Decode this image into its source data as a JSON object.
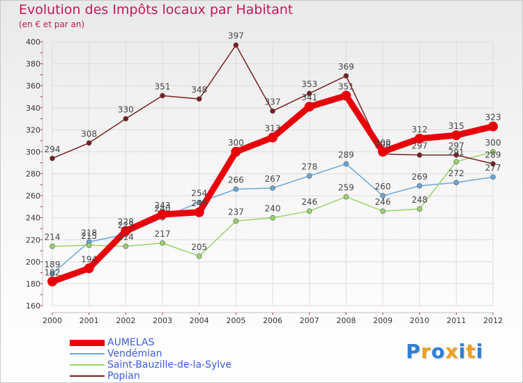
{
  "chart_data": {
    "type": "line",
    "title": "Evolution des Impôts locaux par Habitant",
    "subtitle": "(en € et par an)",
    "xlabel": "",
    "ylabel": "",
    "categories": [
      "2000",
      "2001",
      "2002",
      "2003",
      "2004",
      "2005",
      "2006",
      "2007",
      "2008",
      "2009",
      "2010",
      "2011",
      "2012"
    ],
    "ylim": [
      160,
      400
    ],
    "yticks": [
      160,
      180,
      200,
      220,
      240,
      260,
      280,
      300,
      320,
      340,
      360,
      380,
      400
    ],
    "grid": true,
    "series": [
      {
        "name": "AUMELAS",
        "color": "#e8000a",
        "thick": true,
        "values": [
          182,
          194,
          228,
          243,
          245,
          300,
          313,
          341,
          351,
          300,
          312,
          315,
          323
        ]
      },
      {
        "name": "Vendémian",
        "color": "#6aa6d8",
        "thick": false,
        "values": [
          189,
          218,
          225,
          240,
          254,
          266,
          267,
          278,
          289,
          260,
          269,
          272,
          277
        ]
      },
      {
        "name": "Saint-Bauzille-de-la-Sylve",
        "color": "#98d46a",
        "thick": false,
        "values": [
          214,
          215,
          214,
          217,
          205,
          237,
          240,
          246,
          259,
          246,
          248,
          291,
          300
        ]
      },
      {
        "name": "Popian",
        "color": "#7a1f1f",
        "thick": false,
        "values": [
          294,
          308,
          330,
          351,
          348,
          397,
          337,
          353,
          369,
          298,
          297,
          297,
          289
        ]
      }
    ]
  },
  "logo": {
    "letters": [
      "P",
      "r",
      "o",
      "x",
      "i",
      "t",
      "i"
    ],
    "colors": [
      "#2e7ed6",
      "#f0a020",
      "#2e7ed6",
      "#f0a020",
      "#2e7ed6",
      "#f0a020",
      "#2e7ed6"
    ]
  }
}
